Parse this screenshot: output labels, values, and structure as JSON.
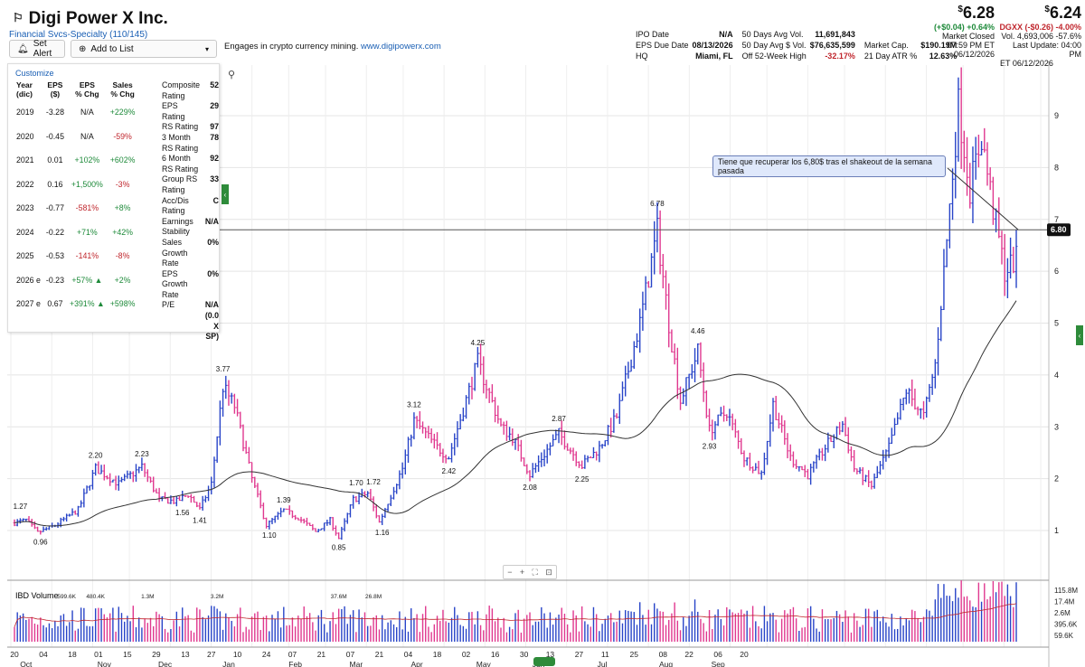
{
  "header": {
    "flag_glyph": "⚐",
    "company": "Digi Power X Inc.",
    "industry": "Financial Svcs-Specialty (110/145)",
    "set_alert": "Set Alert",
    "add_to_list": "Add to List",
    "description": "Engages in crypto currency mining.",
    "website": "www.digipowerx.com"
  },
  "info": {
    "col1": [
      {
        "label": "IPO Date",
        "value": "N/A"
      },
      {
        "label": "EPS Due Date",
        "value": "08/13/2026"
      },
      {
        "label": "HQ",
        "value": "Miami, FL"
      }
    ],
    "col2": [
      {
        "label": "50 Days Avg Vol.",
        "value": "11,691,843"
      },
      {
        "label": "50 Day Avg $ Vol.",
        "value": "$76,635,599"
      },
      {
        "label": "Off 52-Week High",
        "value": "-32.17%"
      }
    ],
    "col3": [
      {
        "label": "",
        "value": ""
      },
      {
        "label": "Market Cap.",
        "value": "$190.19M"
      },
      {
        "label": "21 Day ATR %",
        "value": "12.63%"
      }
    ]
  },
  "quote_after": {
    "price_sup": "$",
    "price": "6.28",
    "change": "(+$0.04) +0.64%",
    "status": "Market Closed",
    "time": "07:59 PM ET",
    "date": "06/12/2026"
  },
  "quote_close": {
    "price_sup": "$",
    "price": "6.24",
    "ticker": "DGXX",
    "change": "(-$0.26) -4.00%",
    "volume": "Vol. 4,693,006 -57.6%",
    "last_update": "Last Update: 04:00 PM",
    "date": "ET 06/12/2026"
  },
  "panel": {
    "customize": "Customize",
    "headers": [
      "Year\n(dic)",
      "EPS\n($)",
      "EPS\n% Chg",
      "Sales\n% Chg"
    ],
    "rows": [
      {
        "year": "2019",
        "eps": "-3.28",
        "eps_chg": "N/A",
        "sales_chg": "+229%"
      },
      {
        "year": "2020",
        "eps": "-0.45",
        "eps_chg": "N/A",
        "sales_chg": "-59%"
      },
      {
        "year": "2021",
        "eps": "0.01",
        "eps_chg": "+102%",
        "sales_chg": "+602%"
      },
      {
        "year": "2022",
        "eps": "0.16",
        "eps_chg": "+1,500%",
        "sales_chg": "-3%"
      },
      {
        "year": "2023",
        "eps": "-0.77",
        "eps_chg": "-581%",
        "sales_chg": "+8%"
      },
      {
        "year": "2024",
        "eps": "-0.22",
        "eps_chg": "+71%",
        "sales_chg": "+42%"
      },
      {
        "year": "2025",
        "eps": "-0.53",
        "eps_chg": "-141%",
        "sales_chg": "-8%"
      },
      {
        "year": "2026 e",
        "eps": "-0.23",
        "eps_chg": "+57% ▲",
        "sales_chg": "+2%"
      },
      {
        "year": "2027 e",
        "eps": "0.67",
        "eps_chg": "+391% ▲",
        "sales_chg": "+598%"
      }
    ],
    "ratings": [
      {
        "label": "Composite Rating",
        "value": "52"
      },
      {
        "label": "EPS Rating",
        "value": "29"
      },
      {
        "label": "RS Rating",
        "value": "97"
      },
      {
        "label": "3 Month RS Rating",
        "value": "78"
      },
      {
        "label": "6 Month RS Rating",
        "value": "92"
      },
      {
        "label": "Group RS Rating",
        "value": "33"
      },
      {
        "label": "Acc/Dis Rating",
        "value": "C"
      },
      {
        "label": "Earnings Stability",
        "value": "N/A"
      },
      {
        "label": "Sales Growth Rate",
        "value": "0%"
      },
      {
        "label": "EPS Growth Rate",
        "value": "0%"
      },
      {
        "label": "P/E",
        "value": "N/A (0.0 X SP)"
      }
    ]
  },
  "zoom": {
    "minus": "−",
    "plus": "+",
    "fit": "⛶",
    "shot": "⊡"
  },
  "chart_data": {
    "type": "candlestick",
    "annotation": "Tiene que recuperar los 6,80$ tras el shakeout de la semana pasada",
    "horizontal_line": 6.8,
    "horizontal_line_label": "6.80",
    "y_ticks": [
      1,
      2,
      3,
      4,
      5,
      6,
      7,
      8,
      9
    ],
    "ylim": [
      0.6,
      9.5
    ],
    "x_range_days": [
      0,
      252
    ],
    "x_ticks": [
      {
        "d": 0,
        "label": "20"
      },
      {
        "d": 10,
        "label": "04"
      },
      {
        "d": 20,
        "label": "18"
      },
      {
        "d": 29,
        "label": "01"
      },
      {
        "d": 39,
        "label": "15"
      },
      {
        "d": 49,
        "label": "29"
      },
      {
        "d": 59,
        "label": "13"
      },
      {
        "d": 68,
        "label": "27"
      },
      {
        "d": 77,
        "label": "10"
      },
      {
        "d": 87,
        "label": "24"
      },
      {
        "d": 96,
        "label": "07"
      },
      {
        "d": 106,
        "label": "21"
      },
      {
        "d": 116,
        "label": "07"
      },
      {
        "d": 126,
        "label": "21"
      },
      {
        "d": 136,
        "label": "04"
      },
      {
        "d": 146,
        "label": "18"
      },
      {
        "d": 156,
        "label": "02"
      },
      {
        "d": 166,
        "label": "16"
      },
      {
        "d": 176,
        "label": "30"
      },
      {
        "d": 185,
        "label": "13"
      },
      {
        "d": 195,
        "label": "27"
      },
      {
        "d": 204,
        "label": "11"
      },
      {
        "d": 214,
        "label": "25"
      },
      {
        "d": 224,
        "label": "08"
      },
      {
        "d": 233,
        "label": "22"
      },
      {
        "d": 243,
        "label": "06"
      },
      {
        "d": 252,
        "label": "20"
      }
    ],
    "month_labels": [
      {
        "d": 4,
        "label": "Oct"
      },
      {
        "d": 31,
        "label": "Nov"
      },
      {
        "d": 52,
        "label": "Dec"
      },
      {
        "d": 74,
        "label": "Jan"
      },
      {
        "d": 97,
        "label": "Feb"
      },
      {
        "d": 118,
        "label": "Mar"
      },
      {
        "d": 139,
        "label": "Apr"
      },
      {
        "d": 162,
        "label": "May"
      },
      {
        "d": 181,
        "label": "Jun"
      },
      {
        "d": 203,
        "label": "Jul"
      },
      {
        "d": 225,
        "label": "Aug"
      },
      {
        "d": 243,
        "label": "Sep"
      }
    ],
    "anchors": [
      [
        0,
        1.15
      ],
      [
        4,
        1.2
      ],
      [
        8,
        0.96
      ],
      [
        14,
        1.1
      ],
      [
        22,
        1.4
      ],
      [
        28,
        2.2
      ],
      [
        36,
        1.9
      ],
      [
        44,
        2.23
      ],
      [
        50,
        1.6
      ],
      [
        56,
        1.56
      ],
      [
        60,
        1.7
      ],
      [
        64,
        1.41
      ],
      [
        68,
        1.9
      ],
      [
        72,
        3.77
      ],
      [
        76,
        3.4
      ],
      [
        82,
        2.0
      ],
      [
        87,
        1.1
      ],
      [
        93,
        1.39
      ],
      [
        98,
        1.25
      ],
      [
        104,
        0.98
      ],
      [
        109,
        1.2
      ],
      [
        112,
        0.85
      ],
      [
        117,
        1.6
      ],
      [
        122,
        1.72
      ],
      [
        126,
        1.16
      ],
      [
        134,
        2.2
      ],
      [
        138,
        3.12
      ],
      [
        146,
        2.6
      ],
      [
        150,
        2.42
      ],
      [
        160,
        4.25
      ],
      [
        168,
        3.0
      ],
      [
        172,
        2.8
      ],
      [
        178,
        2.08
      ],
      [
        188,
        2.87
      ],
      [
        196,
        2.25
      ],
      [
        202,
        2.6
      ],
      [
        208,
        3.2
      ],
      [
        216,
        5.0
      ],
      [
        222,
        6.78
      ],
      [
        226,
        5.0
      ],
      [
        230,
        3.5
      ],
      [
        236,
        4.46
      ],
      [
        240,
        2.93
      ],
      [
        246,
        3.3
      ],
      [
        252,
        2.4
      ]
    ],
    "high_labels": [
      {
        "d": 2,
        "v": 1.27,
        "label": "1.27"
      },
      {
        "d": 28,
        "v": 2.2,
        "label": "2.20"
      },
      {
        "d": 44,
        "v": 2.23,
        "label": "2.23"
      },
      {
        "d": 72,
        "v": 3.77,
        "label": "3.77"
      },
      {
        "d": 93,
        "v": 1.39,
        "label": "1.39"
      },
      {
        "d": 118,
        "v": 1.7,
        "label": "1.70"
      },
      {
        "d": 124,
        "v": 1.72,
        "label": "1.72"
      },
      {
        "d": 138,
        "v": 3.12,
        "label": "3.12"
      },
      {
        "d": 160,
        "v": 4.25,
        "label": "4.25"
      },
      {
        "d": 188,
        "v": 2.87,
        "label": "2.87"
      },
      {
        "d": 222,
        "v": 6.78,
        "label": "6.78"
      },
      {
        "d": 236,
        "v": 4.46,
        "label": "4.46"
      }
    ],
    "low_labels": [
      {
        "d": 9,
        "v": 0.96,
        "label": "0.96"
      },
      {
        "d": 58,
        "v": 1.56,
        "label": "1.56"
      },
      {
        "d": 64,
        "v": 1.41,
        "label": "1.41"
      },
      {
        "d": 88,
        "v": 1.1,
        "label": "1.10"
      },
      {
        "d": 112,
        "v": 0.85,
        "label": "0.85"
      },
      {
        "d": 127,
        "v": 1.16,
        "label": "1.16"
      },
      {
        "d": 150,
        "v": 2.42,
        "label": "2.42"
      },
      {
        "d": 178,
        "v": 2.08,
        "label": "2.08"
      },
      {
        "d": 196,
        "v": 2.25,
        "label": "2.25"
      },
      {
        "d": 240,
        "v": 2.93,
        "label": "2.93"
      }
    ]
  },
  "volume": {
    "title": "IBD Volume",
    "y_labels": [
      "115.8M",
      "17.4M",
      "2.6M",
      "395.6K",
      "59.6K"
    ],
    "bar_labels": [
      {
        "d": 18,
        "label": "599.6K"
      },
      {
        "d": 28,
        "label": "480.4K"
      },
      {
        "d": 46,
        "label": "1.3M"
      },
      {
        "d": 70,
        "label": "3.2M"
      },
      {
        "d": 112,
        "label": "37.6M"
      },
      {
        "d": 124,
        "label": "26.8M"
      }
    ]
  }
}
